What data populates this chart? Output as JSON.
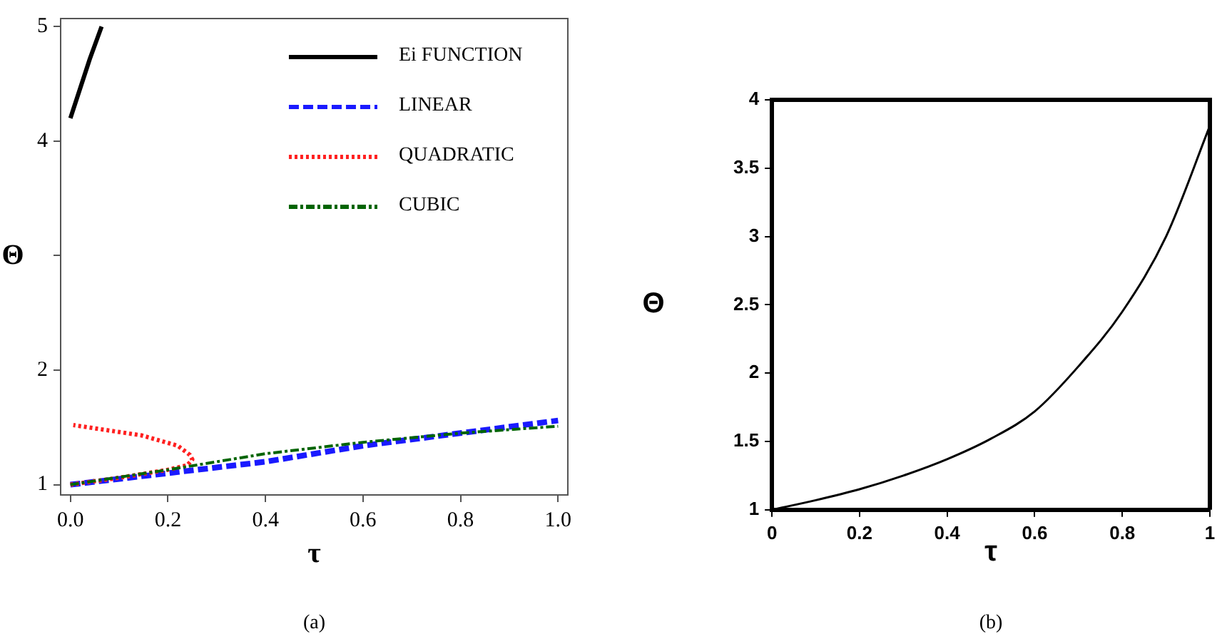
{
  "chart_data": [
    {
      "type": "line",
      "xlabel": "τ",
      "ylabel": "Θ",
      "annotations": [
        "(a)"
      ],
      "legend": "top right",
      "grid": false,
      "marker": "none",
      "xlim": [
        -0.02,
        1.02
      ],
      "xticks": [
        {
          "value": 0,
          "label": "0.0"
        },
        0.2,
        0.4,
        0.6,
        0.8,
        {
          "value": 1,
          "label": "1.0"
        }
      ],
      "ylim": [
        0.91,
        5.07
      ],
      "yticks": [
        1,
        2,
        {
          "value": 3,
          "label": null
        },
        4,
        5
      ],
      "series": [
        {
          "name": "Ei FUNCTION",
          "color": "#000000",
          "line_style": "solid",
          "x": [
            0,
            0.02,
            0.04,
            0.064
          ],
          "values": [
            4.2,
            4.46,
            4.72,
            5.0
          ]
        },
        {
          "name": "LINEAR",
          "color": "#1a1aff",
          "line_style": "dashed",
          "x": [
            0,
            0.2,
            0.4,
            0.6,
            0.8,
            1.0
          ],
          "values": [
            1,
            1.1,
            1.2,
            1.34,
            1.45,
            1.56
          ]
        },
        {
          "name": "QUADRATIC",
          "color": "#ff2020",
          "line_style": "dotted",
          "x": [
            0,
            0.1,
            0.2,
            0.24,
            0.25,
            0.245,
            0.22,
            0.146,
            0.006
          ],
          "values": [
            1,
            1.06,
            1.13,
            1.17,
            1.22,
            1.26,
            1.34,
            1.43,
            1.52
          ]
        },
        {
          "name": "CUBIC",
          "color": "#006400",
          "line_style": "dashdot",
          "x": [
            0,
            0.2,
            0.4,
            0.6,
            0.8,
            1.0
          ],
          "values": [
            1,
            1.13,
            1.27,
            1.37,
            1.45,
            1.51
          ]
        }
      ]
    },
    {
      "type": "line",
      "xlabel": "τ",
      "ylabel": "Θ",
      "annotations": [
        "(b)"
      ],
      "grid": false,
      "marker": "none",
      "xlim": [
        0,
        1
      ],
      "xticks": [
        0,
        0.2,
        0.4,
        0.6,
        0.8,
        1
      ],
      "ylim": [
        1,
        4
      ],
      "yticks": [
        1,
        1.5,
        2,
        2.5,
        3,
        3.5,
        4
      ],
      "series": [
        {
          "color": "#000000",
          "line_style": "solid",
          "x": [
            0,
            0.1,
            0.2,
            0.3,
            0.4,
            0.5,
            0.6,
            0.7,
            0.8,
            0.9,
            1.0
          ],
          "values": [
            1,
            1.07,
            1.15,
            1.25,
            1.37,
            1.52,
            1.72,
            2.05,
            2.45,
            3.0,
            3.81
          ]
        }
      ]
    }
  ]
}
